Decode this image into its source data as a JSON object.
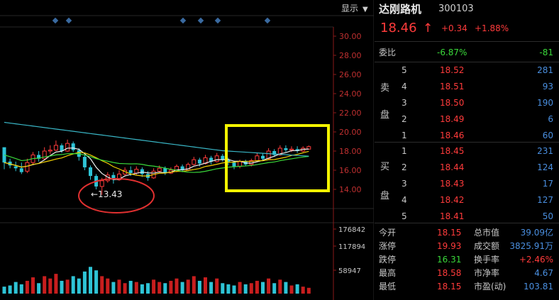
{
  "header": {
    "display_label": "显示",
    "dropdown_glyph": "▼",
    "stock_name": "达刚路机",
    "stock_code": "300103",
    "price": "18.46",
    "price_arrow": "↑",
    "change": "+0.34",
    "change_pct": "+1.88%"
  },
  "wei": {
    "label": "委比",
    "ratio": "-6.87%",
    "diff": "-81"
  },
  "sell": {
    "side_label_1": "卖",
    "side_label_2": "盘",
    "levels": [
      {
        "level": "5",
        "price": "18.52",
        "volume": "281"
      },
      {
        "level": "4",
        "price": "18.51",
        "volume": "93"
      },
      {
        "level": "3",
        "price": "18.50",
        "volume": "190"
      },
      {
        "level": "2",
        "price": "18.49",
        "volume": "6"
      },
      {
        "level": "1",
        "price": "18.46",
        "volume": "60"
      }
    ]
  },
  "buy": {
    "side_label_1": "买",
    "side_label_2": "盘",
    "levels": [
      {
        "level": "1",
        "price": "18.45",
        "volume": "231"
      },
      {
        "level": "2",
        "price": "18.44",
        "volume": "124"
      },
      {
        "level": "3",
        "price": "18.43",
        "volume": "17"
      },
      {
        "level": "4",
        "price": "18.42",
        "volume": "127"
      },
      {
        "level": "5",
        "price": "18.41",
        "volume": "50"
      }
    ]
  },
  "stats": [
    {
      "l_label": "今开",
      "l_value": "18.15",
      "r_label": "总市值",
      "r_value": "39.09亿"
    },
    {
      "l_label": "涨停",
      "l_value": "19.93",
      "r_label": "成交额",
      "r_value": "3825.91万"
    },
    {
      "l_label": "跌停",
      "l_value": "16.31",
      "r_label": "换手率",
      "r_value": "+2.46%"
    },
    {
      "l_label": "最高",
      "l_value": "18.58",
      "r_label": "市净率",
      "r_value": "4.67"
    },
    {
      "l_label": "最低",
      "l_value": "18.15",
      "r_label": "市盈(动)",
      "r_value": "103.81"
    }
  ],
  "chart": {
    "price_ticks": [
      "30.00",
      "28.00",
      "26.00",
      "24.00",
      "22.00",
      "20.00",
      "18.00",
      "16.00",
      "14.00"
    ],
    "volume_ticks": [
      "176842",
      "117894",
      "58947"
    ],
    "low_annotation": "←13.43"
  },
  "colors": {
    "up": "#ff3b3b",
    "down": "#2ec4d6",
    "ma_white": "#f0f0f0",
    "ma_yellow": "#f0d000",
    "ma_green": "#3ad83a",
    "ma_cyan": "#3ab8c8",
    "highlight_box": "#f5f500",
    "circle": "#e03030"
  }
}
